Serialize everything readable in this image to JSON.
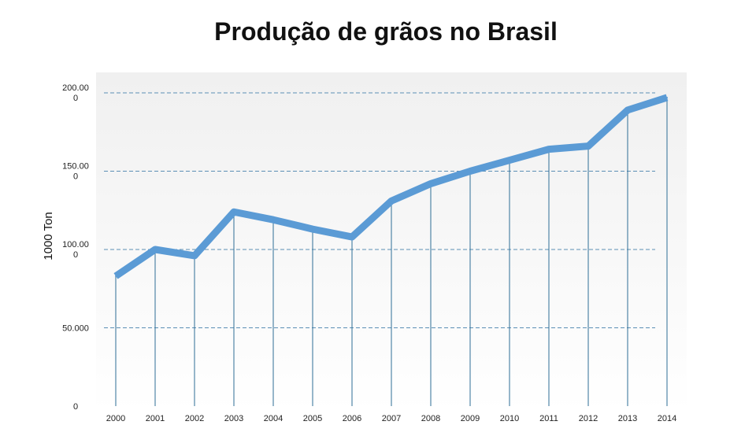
{
  "chart_data": {
    "type": "line",
    "title": "Produção de grãos no Brasil",
    "xlabel": "",
    "ylabel": "1000 Ton",
    "x": [
      "2000",
      "2001",
      "2002",
      "2003",
      "2004",
      "2005",
      "2006",
      "2007",
      "2008",
      "2009",
      "2010",
      "2011",
      "2012",
      "2013",
      "2014"
    ],
    "y_ticks": [
      {
        "value": 0,
        "lines": [
          "0"
        ]
      },
      {
        "value": 50000,
        "lines": [
          "50.000"
        ]
      },
      {
        "value": 100000,
        "lines": [
          "100.00",
          "0"
        ]
      },
      {
        "value": 150000,
        "lines": [
          "150.00",
          "0"
        ]
      },
      {
        "value": 200000,
        "lines": [
          "200.00",
          "0"
        ]
      }
    ],
    "series": [
      {
        "values": [
          83000,
          100000,
          96000,
          124000,
          119000,
          113000,
          108000,
          131000,
          142000,
          150000,
          157000,
          164000,
          166000,
          189000,
          197000
        ]
      }
    ],
    "ylim": [
      0,
      200000
    ],
    "grid": true,
    "colors": {
      "line": "#5b9bd5",
      "drop": "#2e6e96",
      "grid": "#5b8fb5"
    }
  }
}
